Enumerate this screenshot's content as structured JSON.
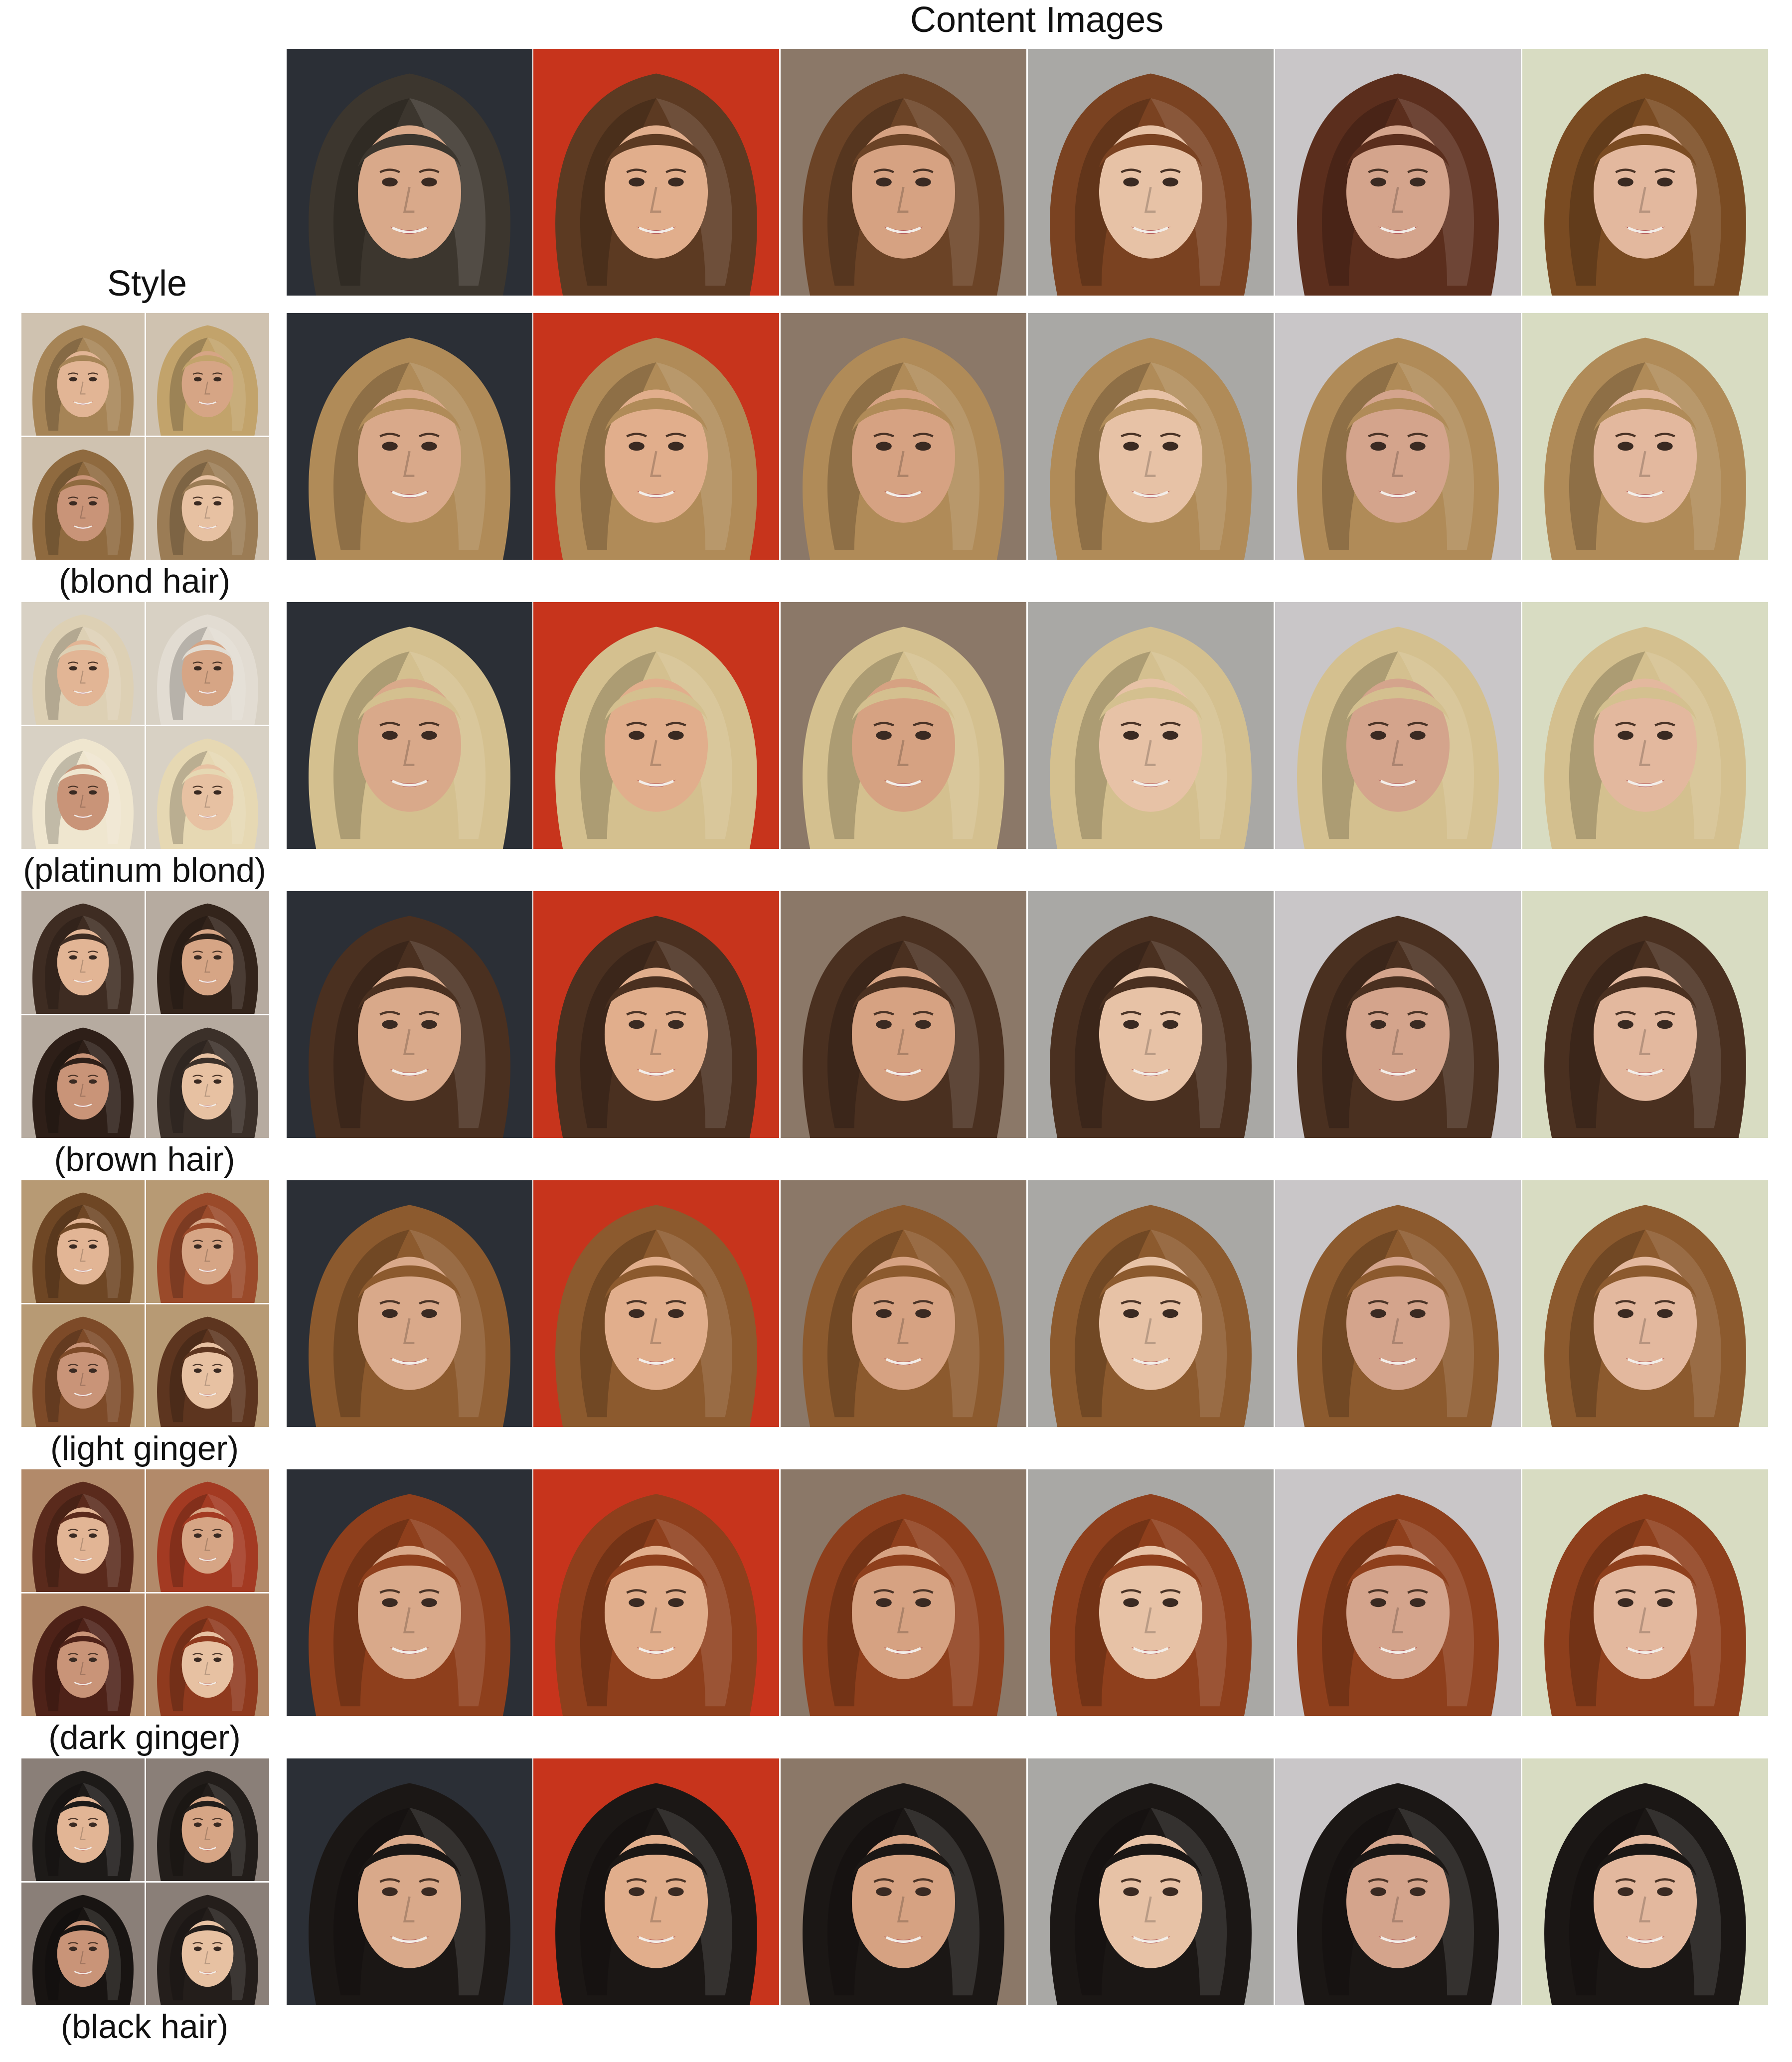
{
  "header": {
    "content_label": "Content Images",
    "style_label": "Style"
  },
  "content_images": [
    {
      "id": "c1",
      "bg": "#2b2f36",
      "hair": "#3c362e",
      "skin": "#d9a98a"
    },
    {
      "id": "c2",
      "bg": "#c7341c",
      "hair": "#5c3a22",
      "skin": "#e1ae8c"
    },
    {
      "id": "c3",
      "bg": "#8b7868",
      "hair": "#6b4326",
      "skin": "#d6a282"
    },
    {
      "id": "c4",
      "bg": "#a9a8a5",
      "hair": "#7a4221",
      "skin": "#e7c2a6"
    },
    {
      "id": "c5",
      "bg": "#c9c6c8",
      "hair": "#5b2e1d",
      "skin": "#d4a48c"
    },
    {
      "id": "c6",
      "bg": "#d8dcc2",
      "hair": "#7a4b22",
      "skin": "#e3b89e"
    }
  ],
  "styles": [
    {
      "caption": "(blond hair)",
      "hair": "#b08b58",
      "bg": "#cfc2b0",
      "thumbs": [
        "#a68456",
        "#c2a36b",
        "#8f6a3f",
        "#9b7c55"
      ]
    },
    {
      "caption": "(platinum blond)",
      "hair": "#d4c08f",
      "bg": "#d8d1c4",
      "thumbs": [
        "#ddd0b4",
        "#e2dcd2",
        "#efe6cf",
        "#e6d8b3"
      ]
    },
    {
      "caption": "(brown hair)",
      "hair": "#4a3020",
      "bg": "#b6aba0",
      "thumbs": [
        "#3e2c22",
        "#33241b",
        "#2e1f18",
        "#3b3029"
      ]
    },
    {
      "caption": "(light ginger)",
      "hair": "#8c5a2e",
      "bg": "#b79a74",
      "thumbs": [
        "#6e4624",
        "#9a4a2a",
        "#7d4a28",
        "#5d351f"
      ]
    },
    {
      "caption": "(dark ginger)",
      "hair": "#8e3f1c",
      "bg": "#b28a6a",
      "thumbs": [
        "#5a2a1c",
        "#a33a22",
        "#4e2218",
        "#8f3a1e"
      ]
    },
    {
      "caption": "(black hair)",
      "hair": "#1b1715",
      "bg": "#8a7f78",
      "thumbs": [
        "#1d1a18",
        "#221d1a",
        "#181412",
        "#241e1b"
      ]
    }
  ]
}
